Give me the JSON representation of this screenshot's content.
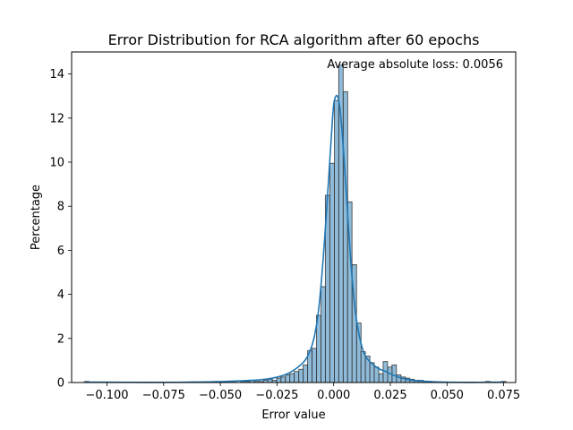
{
  "chart_data": {
    "type": "bar",
    "title": "Error Distribution for RCA algorithm after 60 epochs",
    "xlabel": "Error value",
    "ylabel": "Percentage",
    "annotation": "Average absolute loss: 0.0056",
    "xlim": [
      -0.1156,
      0.0803
    ],
    "ylim": [
      0,
      15
    ],
    "xticks": [
      -0.1,
      -0.075,
      -0.05,
      -0.025,
      0.0,
      0.025,
      0.05,
      0.075
    ],
    "xtick_labels": [
      "−0.100",
      "−0.075",
      "−0.050",
      "−0.025",
      "0.000",
      "0.025",
      "0.050",
      "0.075"
    ],
    "yticks": [
      0,
      2,
      4,
      6,
      8,
      10,
      12,
      14
    ],
    "ytick_labels": [
      "0",
      "2",
      "4",
      "6",
      "8",
      "10",
      "12",
      "14"
    ],
    "grid": false,
    "legend": "none",
    "colors": {
      "bar_fill": "#1f77b4",
      "bar_fill_opacity": 0.5,
      "bar_edge": "#3a3a3a",
      "kde_line": "#1f77b4"
    },
    "bin_width": 0.00196,
    "bins": [
      {
        "x": -0.109,
        "y": 0.05
      },
      {
        "x": -0.062,
        "y": 0.03
      },
      {
        "x": -0.052,
        "y": 0.05
      },
      {
        "x": -0.046,
        "y": 0.05
      },
      {
        "x": -0.044,
        "y": 0.05
      },
      {
        "x": -0.04,
        "y": 0.05
      },
      {
        "x": -0.038,
        "y": 0.05
      },
      {
        "x": -0.036,
        "y": 0.1
      },
      {
        "x": -0.034,
        "y": 0.05
      },
      {
        "x": -0.032,
        "y": 0.05
      },
      {
        "x": -0.03,
        "y": 0.1
      },
      {
        "x": -0.028,
        "y": 0.15
      },
      {
        "x": -0.0262,
        "y": 0.1
      },
      {
        "x": -0.0242,
        "y": 0.2
      },
      {
        "x": -0.0223,
        "y": 0.25
      },
      {
        "x": -0.0203,
        "y": 0.35
      },
      {
        "x": -0.0184,
        "y": 0.4
      },
      {
        "x": -0.0164,
        "y": 0.5
      },
      {
        "x": -0.0144,
        "y": 0.6
      },
      {
        "x": -0.0125,
        "y": 0.8
      },
      {
        "x": -0.0105,
        "y": 1.45
      },
      {
        "x": -0.0086,
        "y": 1.55
      },
      {
        "x": -0.0066,
        "y": 3.05
      },
      {
        "x": -0.0046,
        "y": 4.35
      },
      {
        "x": -0.0027,
        "y": 8.5
      },
      {
        "x": -0.0007,
        "y": 9.95
      },
      {
        "x": 0.0013,
        "y": 12.8
      },
      {
        "x": 0.0032,
        "y": 14.4
      },
      {
        "x": 0.0052,
        "y": 13.2
      },
      {
        "x": 0.0071,
        "y": 8.2
      },
      {
        "x": 0.0091,
        "y": 5.35
      },
      {
        "x": 0.0111,
        "y": 2.7
      },
      {
        "x": 0.013,
        "y": 1.4
      },
      {
        "x": 0.015,
        "y": 1.2
      },
      {
        "x": 0.0169,
        "y": 0.9
      },
      {
        "x": 0.0189,
        "y": 0.7
      },
      {
        "x": 0.0209,
        "y": 0.4
      },
      {
        "x": 0.0228,
        "y": 0.95
      },
      {
        "x": 0.0248,
        "y": 0.7
      },
      {
        "x": 0.0267,
        "y": 0.8
      },
      {
        "x": 0.0287,
        "y": 0.35
      },
      {
        "x": 0.0307,
        "y": 0.25
      },
      {
        "x": 0.0326,
        "y": 0.2
      },
      {
        "x": 0.0346,
        "y": 0.15
      },
      {
        "x": 0.0366,
        "y": 0.1
      },
      {
        "x": 0.0385,
        "y": 0.1
      },
      {
        "x": 0.0405,
        "y": 0.05
      },
      {
        "x": 0.0424,
        "y": 0.05
      },
      {
        "x": 0.068,
        "y": 0.05
      },
      {
        "x": 0.075,
        "y": 0.05
      }
    ],
    "kde": {
      "x": [
        -0.11,
        -0.09,
        -0.07,
        -0.055,
        -0.045,
        -0.038,
        -0.032,
        -0.027,
        -0.023,
        -0.02,
        -0.017,
        -0.014,
        -0.012,
        -0.01,
        -0.0085,
        -0.007,
        -0.0055,
        -0.004,
        -0.0025,
        -0.001,
        0.0,
        0.001,
        0.002,
        0.003,
        0.004,
        0.0055,
        0.007,
        0.0085,
        0.01,
        0.012,
        0.014,
        0.017,
        0.02,
        0.023,
        0.026,
        0.03,
        0.035,
        0.04,
        0.045,
        0.055,
        0.065,
        0.075
      ],
      "y": [
        0.02,
        0.01,
        0.01,
        0.03,
        0.06,
        0.09,
        0.13,
        0.2,
        0.3,
        0.42,
        0.6,
        0.85,
        1.1,
        1.55,
        2.1,
        3.0,
        4.5,
        6.5,
        8.8,
        11.2,
        12.6,
        13.0,
        12.9,
        12.2,
        11.0,
        8.7,
        6.3,
        4.3,
        2.9,
        1.8,
        1.2,
        0.85,
        0.62,
        0.5,
        0.35,
        0.2,
        0.1,
        0.06,
        0.03,
        0.01,
        0.01,
        0.02
      ]
    }
  }
}
